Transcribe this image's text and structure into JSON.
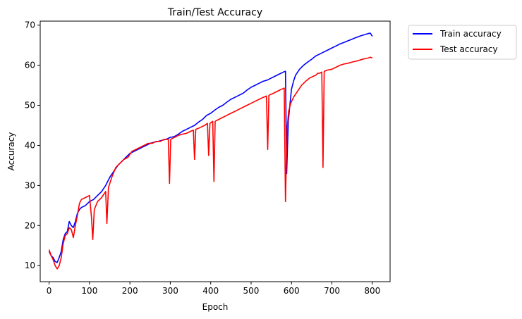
{
  "chart_data": {
    "type": "line",
    "title": "Train/Test Accuracy",
    "xlabel": "Epoch",
    "ylabel": "Accuracy",
    "xlim": [
      -22,
      844
    ],
    "ylim": [
      6,
      71
    ],
    "xticks": [
      0,
      100,
      200,
      300,
      400,
      500,
      600,
      700,
      800
    ],
    "yticks": [
      10,
      20,
      30,
      40,
      50,
      60,
      70
    ],
    "grid": false,
    "legend_position": "outside-top-right",
    "series": [
      {
        "name": "Train accuracy",
        "color": "#0000ff",
        "points": [
          [
            0,
            13.5
          ],
          [
            5,
            12.5
          ],
          [
            10,
            12.0
          ],
          [
            15,
            11.0
          ],
          [
            20,
            10.8
          ],
          [
            25,
            12.0
          ],
          [
            30,
            13.5
          ],
          [
            35,
            16.5
          ],
          [
            40,
            18.0
          ],
          [
            45,
            18.5
          ],
          [
            50,
            21.0
          ],
          [
            55,
            20.0
          ],
          [
            60,
            19.5
          ],
          [
            65,
            21.0
          ],
          [
            70,
            23.0
          ],
          [
            75,
            24.0
          ],
          [
            80,
            24.5
          ],
          [
            90,
            25.0
          ],
          [
            100,
            26.0
          ],
          [
            110,
            26.5
          ],
          [
            120,
            27.5
          ],
          [
            130,
            28.5
          ],
          [
            140,
            30.0
          ],
          [
            150,
            32.0
          ],
          [
            160,
            33.5
          ],
          [
            170,
            35.0
          ],
          [
            180,
            36.0
          ],
          [
            190,
            37.0
          ],
          [
            200,
            38.0
          ],
          [
            210,
            38.5
          ],
          [
            220,
            39.0
          ],
          [
            230,
            39.5
          ],
          [
            240,
            40.0
          ],
          [
            250,
            40.5
          ],
          [
            260,
            40.8
          ],
          [
            270,
            41.0
          ],
          [
            280,
            41.3
          ],
          [
            290,
            41.5
          ],
          [
            300,
            42.0
          ],
          [
            310,
            42.2
          ],
          [
            320,
            42.8
          ],
          [
            330,
            43.5
          ],
          [
            340,
            44.0
          ],
          [
            350,
            44.5
          ],
          [
            360,
            45.0
          ],
          [
            370,
            45.8
          ],
          [
            380,
            46.5
          ],
          [
            390,
            47.5
          ],
          [
            400,
            48.0
          ],
          [
            410,
            48.8
          ],
          [
            420,
            49.5
          ],
          [
            430,
            50.0
          ],
          [
            440,
            50.8
          ],
          [
            450,
            51.5
          ],
          [
            460,
            52.0
          ],
          [
            470,
            52.5
          ],
          [
            480,
            53.0
          ],
          [
            490,
            53.8
          ],
          [
            500,
            54.5
          ],
          [
            510,
            55.0
          ],
          [
            520,
            55.5
          ],
          [
            530,
            56.0
          ],
          [
            540,
            56.3
          ],
          [
            550,
            56.8
          ],
          [
            560,
            57.3
          ],
          [
            570,
            57.8
          ],
          [
            580,
            58.3
          ],
          [
            585,
            58.5
          ],
          [
            588,
            33.0
          ],
          [
            592,
            46.0
          ],
          [
            597,
            51.0
          ],
          [
            600,
            54.0
          ],
          [
            605,
            56.0
          ],
          [
            610,
            57.5
          ],
          [
            620,
            59.0
          ],
          [
            630,
            60.0
          ],
          [
            640,
            60.8
          ],
          [
            650,
            61.5
          ],
          [
            660,
            62.3
          ],
          [
            670,
            62.8
          ],
          [
            680,
            63.3
          ],
          [
            690,
            63.8
          ],
          [
            700,
            64.3
          ],
          [
            710,
            64.8
          ],
          [
            720,
            65.3
          ],
          [
            730,
            65.7
          ],
          [
            740,
            66.1
          ],
          [
            750,
            66.5
          ],
          [
            760,
            66.9
          ],
          [
            770,
            67.3
          ],
          [
            780,
            67.6
          ],
          [
            790,
            67.9
          ],
          [
            795,
            68.0
          ],
          [
            800,
            67.2
          ]
        ]
      },
      {
        "name": "Test accuracy",
        "color": "#ff0000",
        "points": [
          [
            0,
            14.0
          ],
          [
            5,
            12.5
          ],
          [
            10,
            11.5
          ],
          [
            15,
            10.0
          ],
          [
            20,
            9.2
          ],
          [
            25,
            10.0
          ],
          [
            30,
            12.0
          ],
          [
            35,
            15.5
          ],
          [
            40,
            17.5
          ],
          [
            45,
            18.0
          ],
          [
            50,
            19.5
          ],
          [
            55,
            19.0
          ],
          [
            60,
            17.0
          ],
          [
            65,
            20.0
          ],
          [
            70,
            22.5
          ],
          [
            75,
            25.5
          ],
          [
            80,
            26.5
          ],
          [
            90,
            27.0
          ],
          [
            100,
            27.5
          ],
          [
            105,
            22.0
          ],
          [
            108,
            16.5
          ],
          [
            112,
            24.0
          ],
          [
            120,
            26.0
          ],
          [
            130,
            27.0
          ],
          [
            140,
            28.5
          ],
          [
            143,
            20.5
          ],
          [
            147,
            29.5
          ],
          [
            155,
            32.0
          ],
          [
            165,
            34.5
          ],
          [
            175,
            35.5
          ],
          [
            185,
            36.5
          ],
          [
            195,
            37.0
          ],
          [
            205,
            38.5
          ],
          [
            215,
            39.0
          ],
          [
            225,
            39.5
          ],
          [
            235,
            40.0
          ],
          [
            245,
            40.5
          ],
          [
            255,
            40.5
          ],
          [
            265,
            41.0
          ],
          [
            275,
            41.0
          ],
          [
            285,
            41.5
          ],
          [
            295,
            41.5
          ],
          [
            298,
            30.5
          ],
          [
            301,
            41.5
          ],
          [
            310,
            42.0
          ],
          [
            320,
            42.5
          ],
          [
            330,
            42.8
          ],
          [
            340,
            43.0
          ],
          [
            350,
            43.5
          ],
          [
            357,
            43.8
          ],
          [
            360,
            36.5
          ],
          [
            363,
            44.0
          ],
          [
            375,
            44.5
          ],
          [
            385,
            45.0
          ],
          [
            392,
            45.5
          ],
          [
            395,
            37.5
          ],
          [
            398,
            45.5
          ],
          [
            405,
            46.0
          ],
          [
            408,
            31.0
          ],
          [
            411,
            46.0
          ],
          [
            420,
            46.5
          ],
          [
            430,
            47.0
          ],
          [
            440,
            47.5
          ],
          [
            450,
            48.0
          ],
          [
            460,
            48.5
          ],
          [
            470,
            49.0
          ],
          [
            480,
            49.5
          ],
          [
            490,
            50.0
          ],
          [
            500,
            50.5
          ],
          [
            510,
            51.0
          ],
          [
            520,
            51.5
          ],
          [
            530,
            52.0
          ],
          [
            538,
            52.3
          ],
          [
            541,
            39.0
          ],
          [
            544,
            52.5
          ],
          [
            555,
            53.0
          ],
          [
            565,
            53.5
          ],
          [
            575,
            54.0
          ],
          [
            582,
            54.3
          ],
          [
            585,
            26.0
          ],
          [
            589,
            44.0
          ],
          [
            593,
            48.5
          ],
          [
            598,
            50.5
          ],
          [
            605,
            52.0
          ],
          [
            615,
            53.5
          ],
          [
            625,
            55.0
          ],
          [
            635,
            56.0
          ],
          [
            645,
            56.8
          ],
          [
            655,
            57.3
          ],
          [
            660,
            57.5
          ],
          [
            665,
            58.0
          ],
          [
            670,
            58.0
          ],
          [
            675,
            58.3
          ],
          [
            678,
            34.5
          ],
          [
            681,
            58.5
          ],
          [
            690,
            58.8
          ],
          [
            700,
            59.0
          ],
          [
            710,
            59.5
          ],
          [
            720,
            60.0
          ],
          [
            730,
            60.3
          ],
          [
            740,
            60.5
          ],
          [
            750,
            60.8
          ],
          [
            760,
            61.0
          ],
          [
            770,
            61.3
          ],
          [
            780,
            61.6
          ],
          [
            790,
            61.8
          ],
          [
            795,
            62.0
          ],
          [
            800,
            61.8
          ]
        ]
      }
    ]
  }
}
